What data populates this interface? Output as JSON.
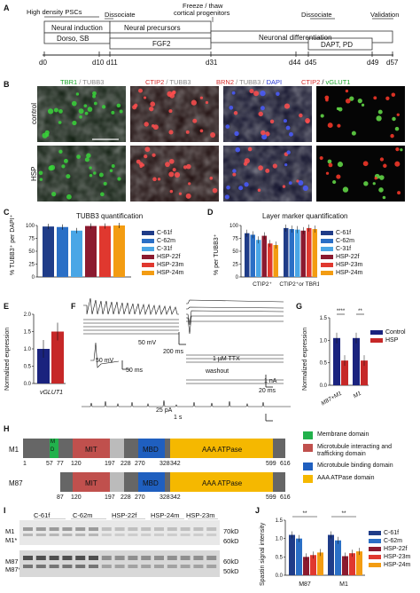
{
  "panel_letters": {
    "A": "A",
    "B": "B",
    "C": "C",
    "D": "D",
    "E": "E",
    "F": "F",
    "G": "G",
    "H": "H",
    "I": "I",
    "J": "J"
  },
  "timeline": {
    "top_labels": [
      "High density PSCs",
      "Dissociate",
      "Freeze / thaw",
      "cortical progenitors",
      "Dissociate",
      "Validation"
    ],
    "neural_induction": "Neural induction",
    "dorso_sb": "Dorso, SB",
    "neural_precursors": "Neural precursors",
    "fgf2": "FGF2",
    "neuronal_diff": "Neuronal differentiation",
    "dapt_pd": "DAPT, PD",
    "days": [
      "d0",
      "d10",
      "d11",
      "d31",
      "d44",
      "d45",
      "d49",
      "d57"
    ]
  },
  "micrographs": {
    "col1": {
      "a": "TBR1",
      "b": " / TUBB3"
    },
    "col2": {
      "a": "CTIP2",
      "b": " / TUBB3"
    },
    "col3": {
      "a": "BRN2",
      "b": " / TUBB3 / ",
      "c": "DAPI"
    },
    "col4": {
      "a": "CTIP2",
      "b": " / ",
      "c": "vGLUT1"
    },
    "row_control": "control",
    "row_hsp": "HSP"
  },
  "legend_lines": [
    "C-61f",
    "C-62m",
    "C-31f",
    "HSP-22f",
    "HSP-23m",
    "HSP-24m"
  ],
  "legend_colors": [
    "#1f3c88",
    "#2a6fc6",
    "#49a6e6",
    "#8b1a2f",
    "#e0382f",
    "#f39c12"
  ],
  "panelC": {
    "title": "TUBB3 quantification",
    "ylabel": "% TUBB3⁺ per DAPI⁺",
    "yticks": [
      "0",
      "25",
      "50",
      "75",
      "100"
    ],
    "chart_data": {
      "type": "bar",
      "series_values": [
        98,
        97,
        90,
        99,
        99,
        100
      ],
      "ylim": [
        0,
        100
      ]
    }
  },
  "panelD": {
    "title": "Layer marker quantification",
    "ylabel": "% per TUBB3⁺",
    "yticks": [
      "0",
      "25",
      "50",
      "75",
      "100"
    ],
    "groups": [
      "CTIP2⁺",
      "CTIP2⁺or TBR1⁺"
    ],
    "chart_data": {
      "type": "bar",
      "groups": [
        {
          "values": [
            85,
            82,
            72,
            80,
            65,
            62
          ]
        },
        {
          "values": [
            95,
            93,
            92,
            90,
            95,
            93
          ]
        }
      ],
      "ylim": [
        0,
        100
      ]
    }
  },
  "panelE": {
    "ylabel": "Normalized expression",
    "yticks": [
      "0.0",
      "0.5",
      "1.0",
      "1.5",
      "2.0"
    ],
    "xlabel": "vGLUT1",
    "chart_data": {
      "type": "bar",
      "values": [
        1.0,
        1.5
      ],
      "ylim": [
        0,
        2
      ]
    }
  },
  "panelF": {
    "scale1": "50 mV",
    "scale1t": "200 ms",
    "scale2v": "50 mV",
    "scale2t": "50 ms",
    "ttx": "1 µM TTX",
    "washout": "washout",
    "scale3a": "1 nA",
    "scale3t": "20 ms",
    "scale4a": "25 pA",
    "scale4t": "1 s"
  },
  "panelG": {
    "ylabel": "Normalized expression",
    "yticks": [
      "0.0",
      "0.5",
      "1.0",
      "1.5"
    ],
    "groups": [
      "M87+M1",
      "M1"
    ],
    "sig": [
      "****",
      "**"
    ],
    "legend": [
      "Control",
      "HSP"
    ],
    "colors": [
      "#1a237e",
      "#c62828"
    ],
    "chart_data": {
      "type": "bar",
      "groups": [
        {
          "values": [
            1.05,
            0.55
          ]
        },
        {
          "values": [
            1.05,
            0.55
          ]
        }
      ],
      "ylim": [
        0,
        1.5
      ]
    }
  },
  "panelH": {
    "m1_label": "M1",
    "m87_label": "M87",
    "md": "M D",
    "mit": "MIT",
    "mbd": "MBD",
    "aaa": "AAA ATPase",
    "m1_nums": [
      "1",
      "57",
      "77",
      "120",
      "197",
      "228",
      "270",
      "328",
      "342",
      "599",
      "616"
    ],
    "m87_nums": [
      "87",
      "120",
      "197",
      "228",
      "270",
      "328",
      "342",
      "599",
      "616"
    ],
    "legend": [
      "Membrane domain",
      "Microtubule interacting and trafficking domain",
      "Microtubule binding domain",
      "AAA ATPase domain"
    ],
    "colors": [
      "#22b14c",
      "#c0504d",
      "#1f5fbf",
      "#f5b800"
    ]
  },
  "panelI": {
    "lanes": [
      "C-61f",
      "C-62m",
      "HSP-22f",
      "HSP-24m",
      "HSP-23m"
    ],
    "left": [
      "M1",
      "M1*",
      "M87",
      "M87*"
    ],
    "right": [
      "70kD",
      "60kD",
      "60kD",
      "50kD"
    ]
  },
  "panelJ": {
    "ylabel": "Spastin signal intensity",
    "yticks": [
      "0.0",
      "0.5",
      "1.0",
      "1.5"
    ],
    "groups": [
      "M87",
      "M1"
    ],
    "sig": [
      "**",
      "**"
    ],
    "chart_data": {
      "type": "bar",
      "groups": [
        {
          "values": [
            1.1,
            1.0,
            0.5,
            0.55,
            0.62
          ]
        },
        {
          "values": [
            1.1,
            0.95,
            0.52,
            0.6,
            0.65
          ]
        }
      ],
      "ylim": [
        0,
        1.5
      ]
    },
    "legend": [
      "C-61f",
      "C-62m",
      "HSP-22f",
      "HSP-23m",
      "HSP-24m"
    ],
    "colors": [
      "#1f3c88",
      "#2a6fc6",
      "#8b1a2f",
      "#e0382f",
      "#f39c12"
    ]
  }
}
